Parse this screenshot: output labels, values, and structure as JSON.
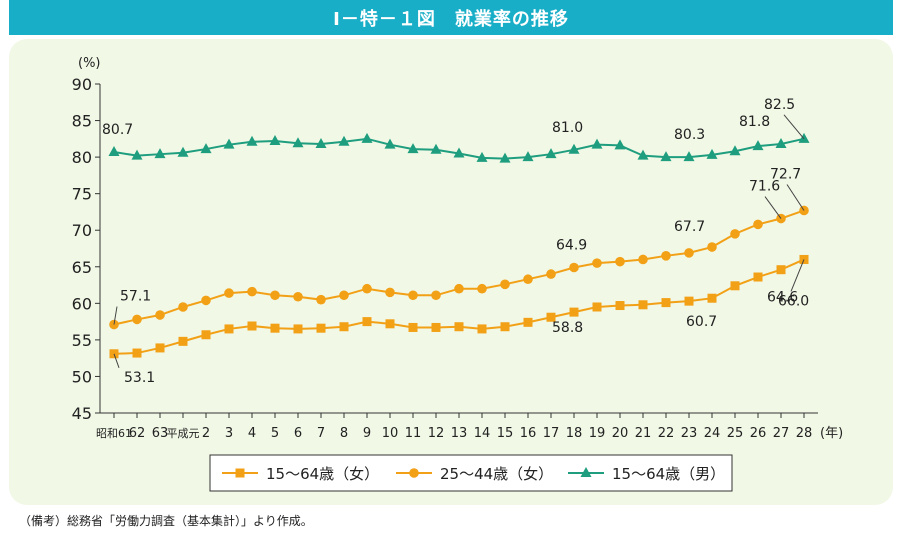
{
  "figure": {
    "title": "Ⅰ－特－１図　就業率の推移",
    "note": "（備考）総務省「労働力調査（基本集計）」より作成。"
  },
  "colors": {
    "title_bg": "#19aec7",
    "panel_bg": "#f1f8e6",
    "female_15_64": "#f2a016",
    "female_25_44": "#f2a016",
    "male_15_64": "#1e9e7e"
  },
  "chart_data": {
    "type": "line",
    "y_unit_label": "(%)",
    "x_unit_label": "(年)",
    "ylim": [
      45,
      90
    ],
    "yticks": [
      45,
      50,
      55,
      60,
      65,
      70,
      75,
      80,
      85,
      90
    ],
    "grid": false,
    "legend_position": "bottom-center",
    "categories": [
      "昭和61",
      "62",
      "63",
      "平成元",
      "2",
      "3",
      "4",
      "5",
      "6",
      "7",
      "8",
      "9",
      "10",
      "11",
      "12",
      "13",
      "14",
      "15",
      "16",
      "17",
      "18",
      "19",
      "20",
      "21",
      "22",
      "23",
      "24",
      "25",
      "26",
      "27",
      "28"
    ],
    "series": [
      {
        "name": "15～64歳（女）",
        "marker": "square",
        "values": [
          53.1,
          53.2,
          53.9,
          54.8,
          55.7,
          56.5,
          56.9,
          56.6,
          56.5,
          56.6,
          56.8,
          57.5,
          57.2,
          56.7,
          56.7,
          56.8,
          56.5,
          56.8,
          57.4,
          58.1,
          58.8,
          59.5,
          59.7,
          59.8,
          60.1,
          60.3,
          60.7,
          62.4,
          63.6,
          64.6,
          66.0
        ],
        "labels": [
          {
            "index": 0,
            "text": "53.1"
          },
          {
            "index": 20,
            "text": "58.8"
          },
          {
            "index": 26,
            "text": "60.7"
          },
          {
            "index": 29,
            "text": "64.6"
          },
          {
            "index": 30,
            "text": "66.0"
          }
        ]
      },
      {
        "name": "25～44歳（女）",
        "marker": "circle",
        "values": [
          57.1,
          57.8,
          58.4,
          59.5,
          60.4,
          61.4,
          61.6,
          61.1,
          60.9,
          60.5,
          61.1,
          62.0,
          61.5,
          61.1,
          61.1,
          62.0,
          62.0,
          62.6,
          63.3,
          64.0,
          64.9,
          65.5,
          65.7,
          66.0,
          66.5,
          66.9,
          67.7,
          69.5,
          70.8,
          71.6,
          72.7
        ],
        "labels": [
          {
            "index": 0,
            "text": "57.1"
          },
          {
            "index": 20,
            "text": "64.9"
          },
          {
            "index": 26,
            "text": "67.7"
          },
          {
            "index": 29,
            "text": "71.6"
          },
          {
            "index": 30,
            "text": "72.7"
          }
        ]
      },
      {
        "name": "15～64歳（男）",
        "marker": "triangle",
        "values": [
          80.7,
          80.2,
          80.4,
          80.6,
          81.1,
          81.7,
          82.1,
          82.2,
          81.9,
          81.8,
          82.1,
          82.5,
          81.7,
          81.1,
          81.0,
          80.5,
          79.9,
          79.8,
          80.0,
          80.4,
          81.0,
          81.7,
          81.6,
          80.2,
          80.0,
          80.0,
          80.3,
          80.8,
          81.5,
          81.8,
          82.5
        ],
        "labels": [
          {
            "index": 0,
            "text": "80.7"
          },
          {
            "index": 20,
            "text": "81.0"
          },
          {
            "index": 26,
            "text": "80.3"
          },
          {
            "index": 29,
            "text": "81.8"
          },
          {
            "index": 30,
            "text": "82.5"
          }
        ]
      }
    ]
  }
}
